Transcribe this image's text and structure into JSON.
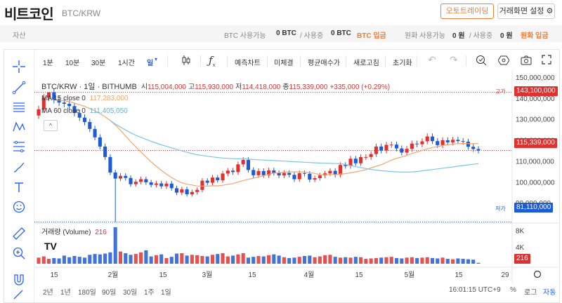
{
  "header": {
    "logo": "비트코인",
    "pair": "BTC/KRW",
    "auto_trade": "오토트레이딩",
    "screen_settings": "거래화면 설정"
  },
  "balance": {
    "asset_label": "자산",
    "btc_available_label": "BTC 사용가능",
    "btc_available_value": "0 BTC",
    "btc_slash": "/ 사용중",
    "btc_used_value": "0 BTC",
    "btc_deposit": "BTC 입금",
    "krw_available_label": "원화 사용가능",
    "krw_available_value": "0 원",
    "krw_slash": "/ 사용중",
    "krw_used_value": "0 원",
    "krw_deposit": "원화 입금"
  },
  "toolbar": {
    "intervals": [
      "1분",
      "10분",
      "30분",
      "1시간",
      "일"
    ],
    "selected_interval": "일",
    "forecast": "예측차트",
    "fixed": "미체결",
    "avg_price": "평균매수가",
    "refresh": "새로고침",
    "reset": "초기화"
  },
  "legend": {
    "symbol": "BTC/KRW · 1일 · BITHUMB",
    "open_label": "시",
    "open": "115,004,000",
    "high_label": "고",
    "high": "115,930,000",
    "low_label": "저",
    "low": "114,418,000",
    "close_label": "종",
    "close": "115,339,000",
    "change": "+335,000 (+0.29%)",
    "ma15_label": "MA 15 close 0",
    "ma15_value": "117,283,000",
    "ma60_label": "MA 60 close 0",
    "ma60_value": "111,405,050",
    "volume_label": "거래량 (Volume)",
    "volume_value": "216"
  },
  "price_axis": {
    "ticks": [
      "150,000,000",
      "140,000,000",
      "130,000,000",
      "120,000,000",
      "110,000,000",
      "100,000,000",
      "90,000,000"
    ],
    "high_tag_label": "고가",
    "high_tag": "143,100,000",
    "current_tag": "115,339,000",
    "low_tag_label": "저가",
    "low_tag": "81,110,000"
  },
  "volume_axis": {
    "ticks": [
      "8K",
      "4K"
    ],
    "current": "216"
  },
  "time_axis": {
    "labels": [
      "15",
      "2월",
      "15",
      "3월",
      "15",
      "4월",
      "15",
      "5월",
      "15",
      "29"
    ]
  },
  "bottom": {
    "ranges": [
      "2년",
      "1년",
      "180일",
      "90일",
      "30일",
      "1주",
      "1일"
    ],
    "clock": "16:01:15 UTC+9",
    "percent": "%",
    "log": "로그",
    "auto": "자동"
  },
  "colors": {
    "up": "#e03131",
    "down": "#1e5bd6",
    "ma15": "#f5a46b",
    "ma60": "#7dc4e6",
    "accent": "#f07c3a"
  },
  "chart_data": {
    "type": "candlestick",
    "ylim": [
      80000000,
      152000000
    ],
    "closes": [
      135000000,
      140500000,
      143100000,
      139500000,
      138200000,
      137600000,
      136500000,
      133200000,
      131000000,
      128900000,
      125600000,
      121600000,
      117200000,
      112200000,
      104800000,
      101900000,
      103200000,
      102200000,
      99200000,
      100400000,
      101600000,
      100100000,
      98900000,
      99600000,
      98200000,
      99500000,
      97300000,
      95200000,
      96800000,
      94400000,
      95500000,
      96500000,
      100900000,
      99900000,
      102400000,
      101100000,
      104300000,
      105700000,
      105000000,
      108700000,
      110800000,
      106000000,
      103500000,
      105500000,
      103500000,
      105800000,
      104600000,
      103400000,
      104600000,
      103700000,
      101600000,
      104500000,
      104200000,
      101400000,
      102100000,
      103400000,
      104400000,
      105600000,
      103700000,
      108400000,
      107900000,
      111400000,
      109200000,
      112200000,
      112200000,
      113600000,
      117200000,
      115300000,
      118000000,
      118100000,
      116300000,
      114300000,
      116100000,
      118600000,
      118300000,
      119700000,
      122000000,
      119800000,
      117900000,
      120200000,
      119200000,
      120400000,
      119800000,
      119500000,
      117100000,
      116000000,
      115300000
    ],
    "volumes": [
      1500,
      1800,
      1200,
      1400,
      1300,
      2000,
      1600,
      1900,
      1700,
      1500,
      2200,
      2400,
      2300,
      2500,
      2800,
      9000,
      3000,
      2600,
      2200,
      2400,
      2800,
      3300,
      1800,
      2100,
      2300,
      1400,
      1700,
      2500,
      2600,
      2000,
      2200,
      2100,
      1900,
      1800,
      2200,
      2400,
      2600,
      1800,
      2000,
      2300,
      2600,
      1500,
      1700,
      1900,
      1800,
      2100,
      2300,
      2000,
      1600,
      1400,
      1500,
      1700,
      1900,
      2000,
      1600,
      1800,
      2100,
      2200,
      1700,
      1500,
      1600,
      1500,
      1700,
      1600,
      1200,
      1300,
      1400,
      1500,
      1600,
      1700,
      1400,
      1300,
      1500,
      1600,
      1400,
      1500,
      1600,
      1400,
      1300,
      1500,
      1200,
      1100,
      1300,
      1200,
      1100,
      1000,
      216
    ]
  }
}
